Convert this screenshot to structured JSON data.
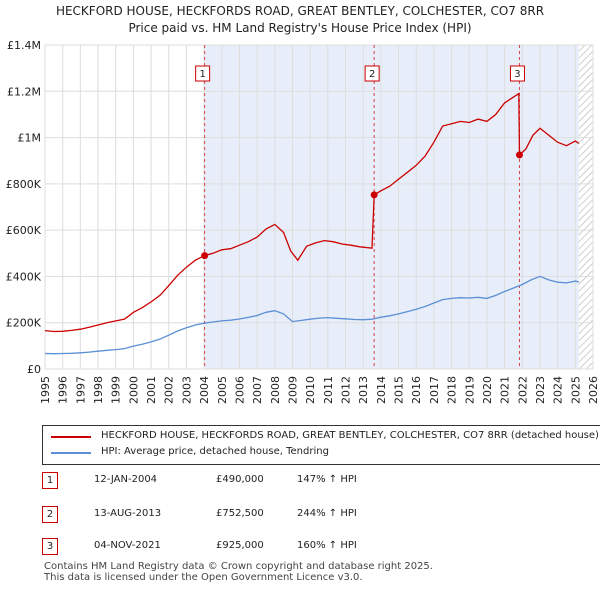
{
  "chart_data": {
    "type": "line",
    "title": "HECKFORD HOUSE, HECKFORDS ROAD, GREAT BENTLEY, COLCHESTER, CO7 8RR",
    "subtitle": "Price paid vs. HM Land Registry's House Price Index (HPI)",
    "xlabel": "",
    "ylabel": "",
    "xlim": [
      1995,
      2026
    ],
    "ylim": [
      0,
      1400000
    ],
    "x_ticks": [
      1995,
      1996,
      1997,
      1998,
      1999,
      2000,
      2001,
      2002,
      2003,
      2004,
      2005,
      2006,
      2007,
      2008,
      2009,
      2010,
      2011,
      2012,
      2013,
      2014,
      2015,
      2016,
      2017,
      2018,
      2019,
      2020,
      2021,
      2022,
      2023,
      2024,
      2025,
      2026
    ],
    "y_ticks": [
      {
        "value": 0,
        "label": "£0"
      },
      {
        "value": 200000,
        "label": "£200K"
      },
      {
        "value": 400000,
        "label": "£400K"
      },
      {
        "value": 600000,
        "label": "£600K"
      },
      {
        "value": 800000,
        "label": "£800K"
      },
      {
        "value": 1000000,
        "label": "£1M"
      },
      {
        "value": 1200000,
        "label": "£1.2M"
      },
      {
        "value": 1400000,
        "label": "£1.4M"
      }
    ],
    "grid": true,
    "shaded_region_start": 2004.03,
    "hatched_region_start": 2025.2,
    "series": [
      {
        "name": "HECKFORD HOUSE, HECKFORDS ROAD, GREAT BENTLEY, COLCHESTER, CO7 8RR (detached house)",
        "color": "#cc0000",
        "points": [
          [
            1995.0,
            166000
          ],
          [
            1995.5,
            162000
          ],
          [
            1996.0,
            163000
          ],
          [
            1996.5,
            167000
          ],
          [
            1997.0,
            172000
          ],
          [
            1997.5,
            180000
          ],
          [
            1998.0,
            190000
          ],
          [
            1998.5,
            200000
          ],
          [
            1999.0,
            208000
          ],
          [
            1999.5,
            215000
          ],
          [
            2000.0,
            245000
          ],
          [
            2000.5,
            265000
          ],
          [
            2001.0,
            290000
          ],
          [
            2001.5,
            318000
          ],
          [
            2002.0,
            360000
          ],
          [
            2002.5,
            405000
          ],
          [
            2003.0,
            440000
          ],
          [
            2003.5,
            470000
          ],
          [
            2004.03,
            490000
          ],
          [
            2004.5,
            500000
          ],
          [
            2005.0,
            515000
          ],
          [
            2005.5,
            520000
          ],
          [
            2006.0,
            535000
          ],
          [
            2006.5,
            550000
          ],
          [
            2007.0,
            570000
          ],
          [
            2007.5,
            605000
          ],
          [
            2008.0,
            625000
          ],
          [
            2008.5,
            590000
          ],
          [
            2008.9,
            510000
          ],
          [
            2009.3,
            470000
          ],
          [
            2009.8,
            530000
          ],
          [
            2010.3,
            545000
          ],
          [
            2010.8,
            555000
          ],
          [
            2011.3,
            550000
          ],
          [
            2011.8,
            540000
          ],
          [
            2012.3,
            535000
          ],
          [
            2012.8,
            528000
          ],
          [
            2013.5,
            522000
          ],
          [
            2013.62,
            752500
          ],
          [
            2014.0,
            770000
          ],
          [
            2014.5,
            790000
          ],
          [
            2015.0,
            820000
          ],
          [
            2015.5,
            850000
          ],
          [
            2016.0,
            880000
          ],
          [
            2016.5,
            920000
          ],
          [
            2017.0,
            980000
          ],
          [
            2017.5,
            1050000
          ],
          [
            2018.0,
            1060000
          ],
          [
            2018.5,
            1070000
          ],
          [
            2019.0,
            1065000
          ],
          [
            2019.5,
            1080000
          ],
          [
            2020.0,
            1070000
          ],
          [
            2020.5,
            1100000
          ],
          [
            2021.0,
            1150000
          ],
          [
            2021.5,
            1175000
          ],
          [
            2021.8,
            1190000
          ],
          [
            2021.84,
            925000
          ],
          [
            2022.2,
            950000
          ],
          [
            2022.6,
            1010000
          ],
          [
            2023.0,
            1040000
          ],
          [
            2023.5,
            1010000
          ],
          [
            2024.0,
            980000
          ],
          [
            2024.5,
            965000
          ],
          [
            2025.0,
            985000
          ],
          [
            2025.2,
            975000
          ]
        ]
      },
      {
        "name": "HPI: Average price, detached house, Tendring",
        "color": "#5b8fd6",
        "points": [
          [
            1995.0,
            67000
          ],
          [
            1995.5,
            66000
          ],
          [
            1996.0,
            67000
          ],
          [
            1996.5,
            68000
          ],
          [
            1997.0,
            70000
          ],
          [
            1997.5,
            73000
          ],
          [
            1998.0,
            77000
          ],
          [
            1998.5,
            81000
          ],
          [
            1999.0,
            84000
          ],
          [
            1999.5,
            88000
          ],
          [
            2000.0,
            99000
          ],
          [
            2000.5,
            107000
          ],
          [
            2001.0,
            117000
          ],
          [
            2001.5,
            129000
          ],
          [
            2002.0,
            146000
          ],
          [
            2002.5,
            164000
          ],
          [
            2003.0,
            178000
          ],
          [
            2003.5,
            190000
          ],
          [
            2004.0,
            198000
          ],
          [
            2004.5,
            203000
          ],
          [
            2005.0,
            208000
          ],
          [
            2005.5,
            211000
          ],
          [
            2006.0,
            216000
          ],
          [
            2006.5,
            223000
          ],
          [
            2007.0,
            231000
          ],
          [
            2007.5,
            245000
          ],
          [
            2008.0,
            252000
          ],
          [
            2008.5,
            238000
          ],
          [
            2009.0,
            205000
          ],
          [
            2009.5,
            210000
          ],
          [
            2010.0,
            215000
          ],
          [
            2010.5,
            220000
          ],
          [
            2011.0,
            222000
          ],
          [
            2011.5,
            219000
          ],
          [
            2012.0,
            217000
          ],
          [
            2012.5,
            214000
          ],
          [
            2013.0,
            213000
          ],
          [
            2013.5,
            215000
          ],
          [
            2014.0,
            224000
          ],
          [
            2014.5,
            230000
          ],
          [
            2015.0,
            238000
          ],
          [
            2015.5,
            248000
          ],
          [
            2016.0,
            258000
          ],
          [
            2016.5,
            270000
          ],
          [
            2017.0,
            285000
          ],
          [
            2017.5,
            300000
          ],
          [
            2018.0,
            305000
          ],
          [
            2018.5,
            308000
          ],
          [
            2019.0,
            307000
          ],
          [
            2019.5,
            310000
          ],
          [
            2020.0,
            305000
          ],
          [
            2020.5,
            318000
          ],
          [
            2021.0,
            335000
          ],
          [
            2021.5,
            350000
          ],
          [
            2022.0,
            365000
          ],
          [
            2022.5,
            385000
          ],
          [
            2023.0,
            400000
          ],
          [
            2023.5,
            385000
          ],
          [
            2024.0,
            375000
          ],
          [
            2024.5,
            372000
          ],
          [
            2025.0,
            380000
          ],
          [
            2025.2,
            376000
          ]
        ]
      }
    ],
    "sales": [
      {
        "marker": "1",
        "x": 2004.03,
        "price": 490000,
        "date": "12-JAN-2004",
        "price_label": "£490,000",
        "hpi_label": "147% ↑ HPI"
      },
      {
        "marker": "2",
        "x": 2013.62,
        "price": 752500,
        "date": "13-AUG-2013",
        "price_label": "£752,500",
        "hpi_label": "244% ↑ HPI"
      },
      {
        "marker": "3",
        "x": 2021.84,
        "price": 925000,
        "date": "04-NOV-2021",
        "price_label": "£925,000",
        "hpi_label": "160% ↑ HPI"
      }
    ]
  },
  "legend": {
    "property_label": "HECKFORD HOUSE, HECKFORDS ROAD, GREAT BENTLEY, COLCHESTER, CO7 8RR (detached house)",
    "hpi_label": "HPI: Average price, detached house, Tendring"
  },
  "footer": {
    "line1": "Contains HM Land Registry data © Crown copyright and database right 2025.",
    "line2": "This data is licensed under the Open Government Licence v3.0."
  },
  "colors": {
    "property": "#cc0000",
    "hpi": "#5b8fd6",
    "shade": "#e8eef9",
    "grid": "#dddddd"
  }
}
